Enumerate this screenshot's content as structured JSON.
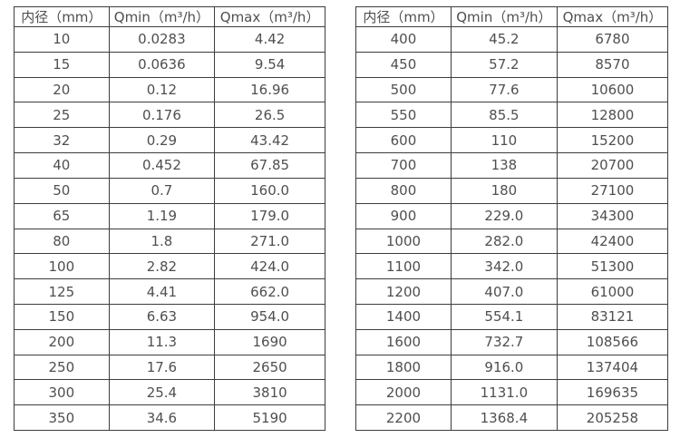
{
  "chart_data": [
    {
      "type": "table",
      "title": "",
      "columns": [
        "内径（mm）",
        "Qmin（m³/h）",
        "Qmax（m³/h）"
      ],
      "rows": [
        [
          "10",
          "0.0283",
          "4.42"
        ],
        [
          "15",
          "0.0636",
          "9.54"
        ],
        [
          "20",
          "0.12",
          "16.96"
        ],
        [
          "25",
          "0.176",
          "26.5"
        ],
        [
          "32",
          "0.29",
          "43.42"
        ],
        [
          "40",
          "0.452",
          "67.85"
        ],
        [
          "50",
          "0.7",
          "160.0"
        ],
        [
          "65",
          "1.19",
          "179.0"
        ],
        [
          "80",
          "1.8",
          "271.0"
        ],
        [
          "100",
          "2.82",
          "424.0"
        ],
        [
          "125",
          "4.41",
          "662.0"
        ],
        [
          "150",
          "6.63",
          "954.0"
        ],
        [
          "200",
          "11.3",
          "1690"
        ],
        [
          "250",
          "17.6",
          "2650"
        ],
        [
          "300",
          "25.4",
          "3810"
        ],
        [
          "350",
          "34.6",
          "5190"
        ]
      ]
    },
    {
      "type": "table",
      "title": "",
      "columns": [
        "内径（mm）",
        "Qmin（m³/h）",
        "Qmax（m³/h）"
      ],
      "rows": [
        [
          "400",
          "45.2",
          "6780"
        ],
        [
          "450",
          "57.2",
          "8570"
        ],
        [
          "500",
          "77.6",
          "10600"
        ],
        [
          "550",
          "85.5",
          "12800"
        ],
        [
          "600",
          "110",
          "15200"
        ],
        [
          "700",
          "138",
          "20700"
        ],
        [
          "800",
          "180",
          "27100"
        ],
        [
          "900",
          "229.0",
          "34300"
        ],
        [
          "1000",
          "282.0",
          "42400"
        ],
        [
          "1100",
          "342.0",
          "51300"
        ],
        [
          "1200",
          "407.0",
          "61000"
        ],
        [
          "1400",
          "554.1",
          "83121"
        ],
        [
          "1600",
          "732.7",
          "108566"
        ],
        [
          "1800",
          "916.0",
          "137404"
        ],
        [
          "2000",
          "1131.0",
          "169635"
        ],
        [
          "2200",
          "1368.4",
          "205258"
        ]
      ]
    }
  ],
  "colors": {
    "background": "#ffffff",
    "border": "#3d3d3d",
    "text": "#4f4f4f"
  }
}
